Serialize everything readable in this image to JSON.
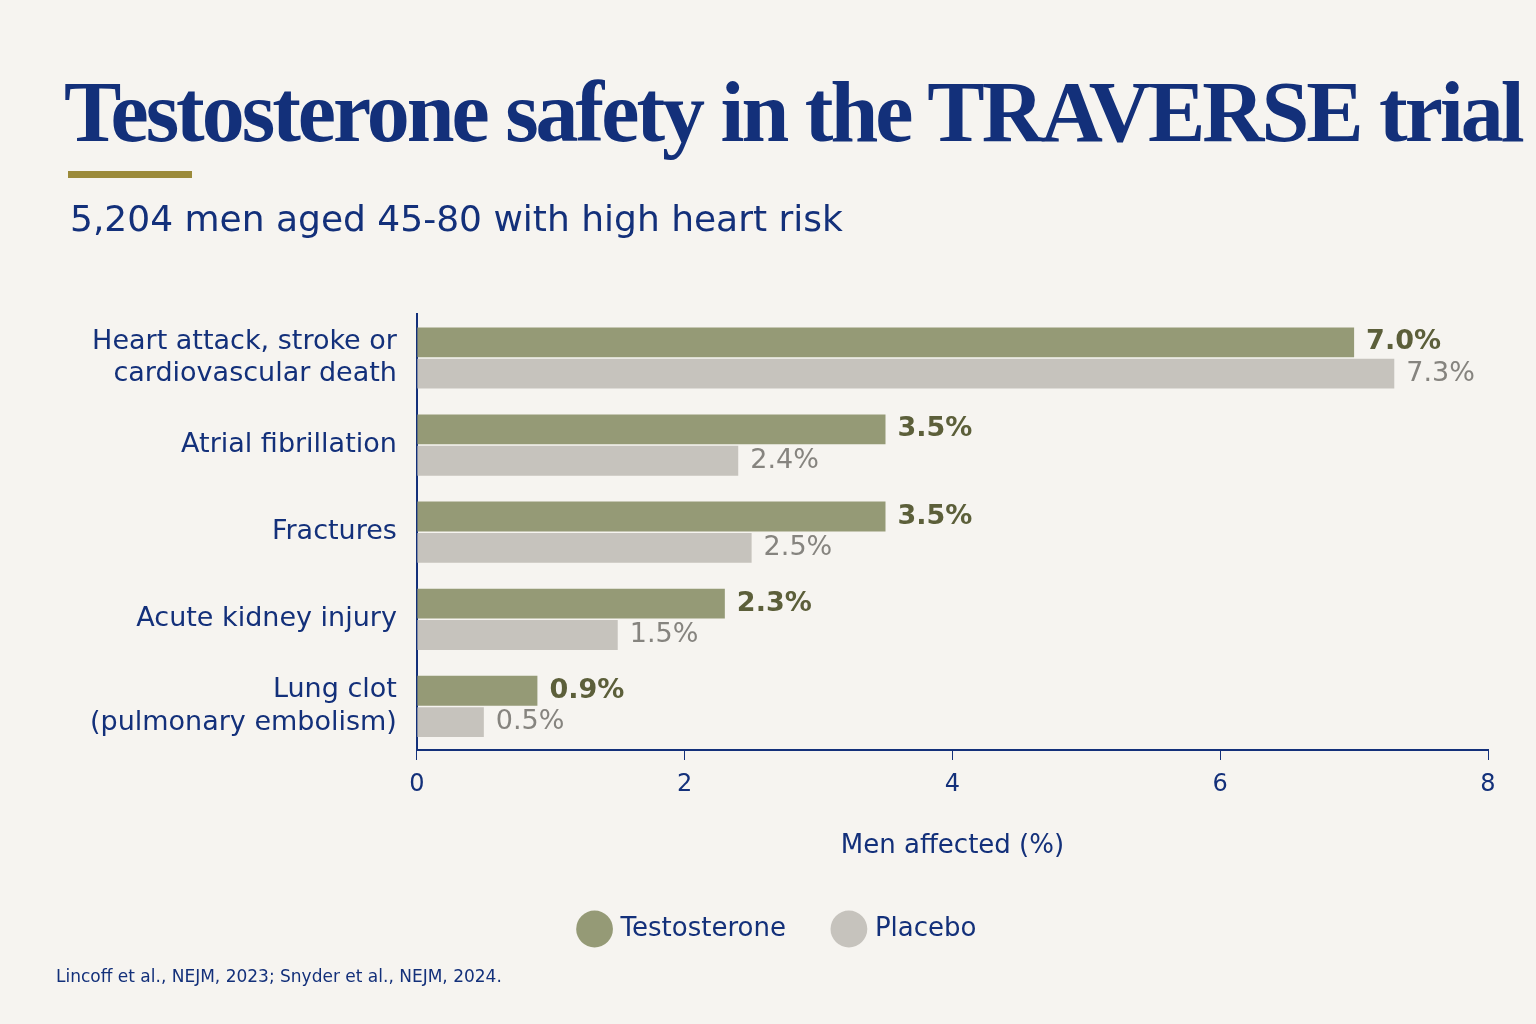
{
  "chart_data": {
    "type": "bar",
    "orientation": "horizontal",
    "title": "Testosterone safety in the TRAVERSE trial",
    "subtitle": "5,204 men aged 45-80 with high heart risk",
    "xlabel": "Men affected (%)",
    "categories": [
      "Heart attack, stroke or cardiovascular death",
      "Atrial fibrillation",
      "Fractures",
      "Acute kidney injury",
      "Lung clot (pulmonary embolism)"
    ],
    "series": [
      {
        "name": "Testosterone",
        "color": "#959a76",
        "values": [
          7.0,
          3.5,
          3.5,
          2.3,
          0.9
        ],
        "value_labels": [
          "7.0%",
          "3.5%",
          "3.5%",
          "2.3%",
          "0.9%"
        ]
      },
      {
        "name": "Placebo",
        "color": "#c6c3bd",
        "values": [
          7.3,
          2.4,
          2.5,
          1.5,
          0.5
        ],
        "value_labels": [
          "7.3%",
          "2.4%",
          "2.5%",
          "1.5%",
          "0.5%"
        ]
      }
    ],
    "xlim": [
      0,
      8
    ],
    "xticks": [
      0,
      2,
      4,
      6,
      8
    ],
    "grid": false,
    "legend": "bottom",
    "annotations": [
      "Lincoff et al., NEJM, 2023; Snyder et al., NEJM, 2024."
    ]
  }
}
